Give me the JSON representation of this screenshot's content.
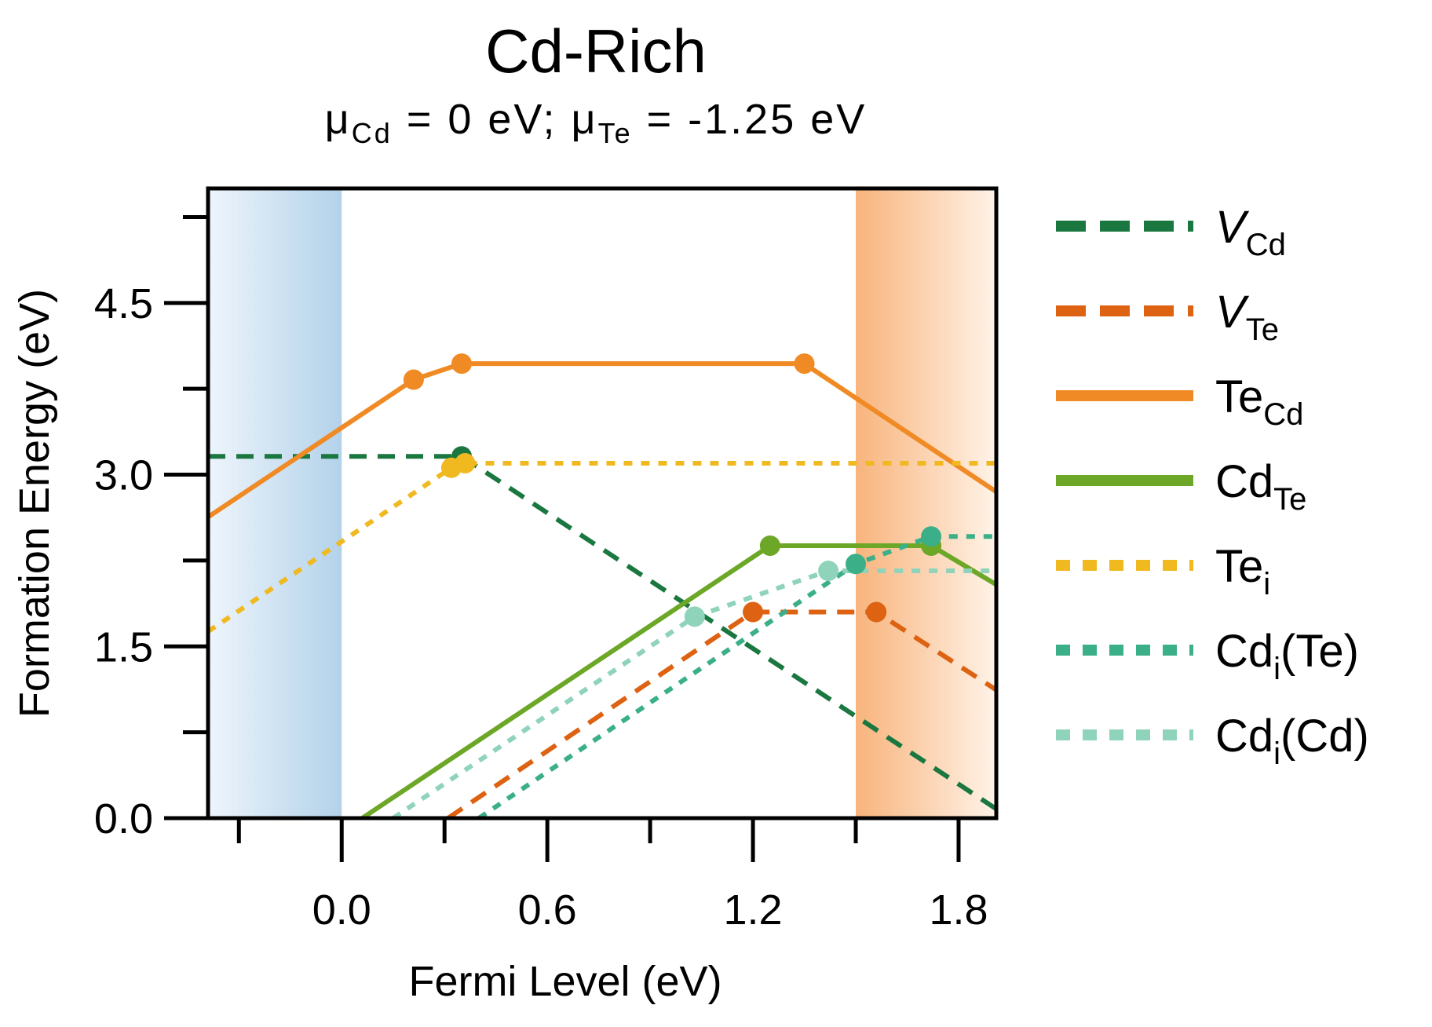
{
  "chart_data": {
    "type": "line",
    "title": "Cd-Rich",
    "subtitle": {
      "mu": "μ",
      "sub1": "Cd",
      "mid": " = 0 eV; ",
      "sub2": "Te",
      "end": " = -1.25 eV"
    },
    "xlabel": "Fermi Level (eV)",
    "ylabel": "Formation Energy (eV)",
    "xlim": [
      -0.39,
      1.91
    ],
    "ylim": [
      0.0,
      5.5
    ],
    "xticks_major": [
      0.0,
      0.6,
      1.2,
      1.8
    ],
    "xtick_labels": [
      "0.0",
      "0.6",
      "1.2",
      "1.8"
    ],
    "xticks_minor": [
      -0.3,
      0.3,
      0.9,
      1.5
    ],
    "yticks_major": [
      0.0,
      1.5,
      3.0,
      4.5
    ],
    "ytick_labels": [
      "0.0",
      "1.5",
      "3.0",
      "4.5"
    ],
    "yticks_minor": [
      0.75,
      2.25,
      3.75,
      5.25
    ],
    "grid": false,
    "legend_position": "right",
    "regions": [
      {
        "name": "valence",
        "from": -0.39,
        "to": 0.0,
        "colors": [
          "#eef5fc",
          "#b3d2ea"
        ]
      },
      {
        "name": "conduction",
        "from": 1.5,
        "to": 1.91,
        "colors": [
          "#f8b47c",
          "#fff3e8"
        ]
      }
    ],
    "series": [
      {
        "key": "V_Cd",
        "name": "V",
        "sub": "Cd",
        "italic": true,
        "color": "#1a7740",
        "style": "dashed",
        "x": [
          -0.39,
          0.35,
          1.91
        ],
        "y": [
          3.16,
          3.16,
          0.08
        ],
        "markers": [
          [
            0.35,
            3.16
          ]
        ]
      },
      {
        "key": "V_Te",
        "name": "V",
        "sub": "Te",
        "italic": true,
        "color": "#dd6211",
        "style": "dashed",
        "x": [
          0.31,
          1.2,
          1.56,
          1.91
        ],
        "y": [
          0.0,
          1.8,
          1.8,
          1.12
        ],
        "markers": [
          [
            1.2,
            1.8
          ],
          [
            1.56,
            1.8
          ]
        ]
      },
      {
        "key": "Te_Cd",
        "name": "Te",
        "sub": "Cd",
        "italic": false,
        "color": "#f08a24",
        "style": "solid",
        "x": [
          -0.39,
          0.21,
          0.35,
          1.35,
          1.91
        ],
        "y": [
          2.63,
          3.83,
          3.97,
          3.97,
          2.85
        ],
        "markers": [
          [
            0.21,
            3.83
          ],
          [
            0.35,
            3.97
          ],
          [
            1.35,
            3.97
          ]
        ]
      },
      {
        "key": "Cd_Te",
        "name": "Cd",
        "sub": "Te",
        "italic": false,
        "color": "#6ca727",
        "style": "solid",
        "x": [
          0.06,
          1.25,
          1.72,
          1.91
        ],
        "y": [
          0.0,
          2.38,
          2.38,
          2.04
        ],
        "markers": [
          [
            1.25,
            2.38
          ],
          [
            1.72,
            2.38
          ]
        ]
      },
      {
        "key": "Te_i",
        "name": "Te",
        "sub": "i",
        "italic": false,
        "color": "#f0b920",
        "style": "dotted",
        "x": [
          -0.39,
          0.32,
          0.36,
          1.91
        ],
        "y": [
          1.63,
          3.06,
          3.1,
          3.1
        ],
        "markers": [
          [
            0.32,
            3.06
          ],
          [
            0.36,
            3.1
          ]
        ]
      },
      {
        "key": "Cd_i_Te",
        "name": "Cd",
        "sub": "i",
        "suffix": "(Te)",
        "italic": false,
        "color": "#3aaf88",
        "style": "dotted",
        "x": [
          0.4,
          1.5,
          1.72,
          1.91
        ],
        "y": [
          0.0,
          2.22,
          2.46,
          2.46
        ],
        "markers": [
          [
            1.5,
            2.22
          ],
          [
            1.72,
            2.46
          ]
        ]
      },
      {
        "key": "Cd_i_Cd",
        "name": "Cd",
        "sub": "i",
        "suffix": "(Cd)",
        "italic": false,
        "color": "#8fd3bb",
        "style": "dotted",
        "x": [
          0.15,
          1.03,
          1.42,
          1.91
        ],
        "y": [
          0.0,
          1.76,
          2.16,
          2.16
        ],
        "markers": [
          [
            1.03,
            1.76
          ],
          [
            1.42,
            2.16
          ]
        ]
      }
    ]
  }
}
